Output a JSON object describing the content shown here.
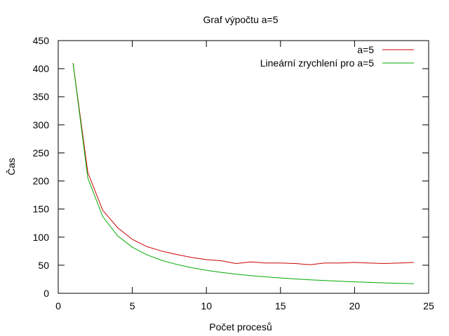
{
  "chart_data": {
    "type": "line",
    "title": "Graf výpočtu a=5",
    "xlabel": "Počet procesů",
    "ylabel": "Čas",
    "xlim": [
      0,
      25
    ],
    "ylim": [
      0,
      450
    ],
    "xticks": [
      0,
      5,
      10,
      15,
      20,
      25
    ],
    "yticks": [
      0,
      50,
      100,
      150,
      200,
      250,
      300,
      350,
      400,
      450
    ],
    "grid": false,
    "legend_position": "top-right",
    "x": [
      1,
      2,
      3,
      4,
      5,
      6,
      7,
      8,
      9,
      10,
      11,
      12,
      13,
      14,
      15,
      16,
      17,
      18,
      19,
      20,
      21,
      22,
      23,
      24
    ],
    "series": [
      {
        "name": "a=5",
        "color": "#cc0000",
        "values": [
          410,
          215,
          148,
          117,
          96,
          83,
          75,
          69,
          64,
          60,
          58,
          53,
          56,
          54,
          54,
          53,
          51,
          54,
          54,
          55,
          54,
          53,
          54,
          55
        ]
      },
      {
        "name": "Lineární zrychlení pro a=5",
        "color": "#00aa00",
        "values": [
          410,
          205,
          136.7,
          102.5,
          82,
          68.3,
          58.6,
          51.3,
          45.6,
          41,
          37.3,
          34.2,
          31.5,
          29.3,
          27.3,
          25.6,
          24.1,
          22.8,
          21.6,
          20.5,
          19.5,
          18.6,
          17.8,
          17.1
        ]
      }
    ]
  }
}
